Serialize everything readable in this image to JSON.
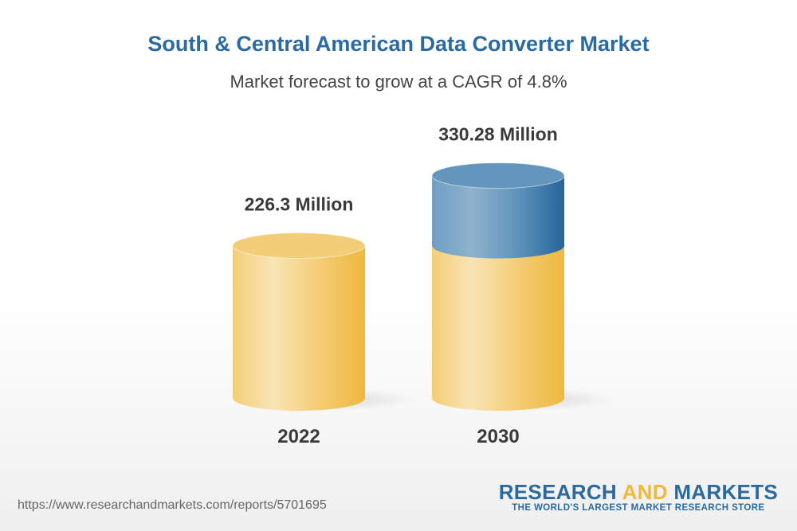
{
  "chart_data": {
    "type": "bar",
    "style": "3d-cylinder",
    "title": "South & Central American Data Converter Market",
    "subtitle": "Market forecast to grow at a CAGR of 4.8%",
    "categories": [
      "2022",
      "2030"
    ],
    "values": [
      226.3,
      330.28
    ],
    "data_labels": [
      "226.3 Million",
      "330.28 Million"
    ],
    "unit": "Million",
    "grid": false,
    "colors": {
      "base": "#f0b93a",
      "growth": "#2a6aa0"
    }
  },
  "footer": {
    "url": "https://www.researchandmarkets.com/reports/5701695",
    "logo_part1": "RESEARCH ",
    "logo_part2": "AND",
    "logo_part3": " MARKETS",
    "logo_tagline": "THE WORLD'S LARGEST MARKET RESEARCH STORE"
  }
}
